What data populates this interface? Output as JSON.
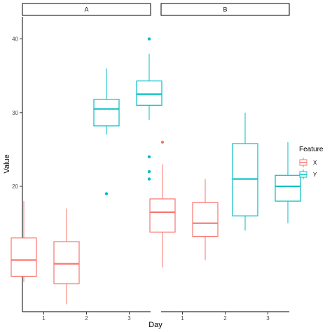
{
  "chart_data": {
    "type": "boxplot",
    "facets": [
      "A",
      "B"
    ],
    "xlabel": "Day",
    "ylabel": "Value",
    "categories": [
      "1",
      "2",
      "3"
    ],
    "x_ticks": [
      "1",
      "2",
      "3"
    ],
    "y_ticks": [
      10,
      20,
      30,
      40
    ],
    "ylim": [
      3,
      43
    ],
    "grid": false,
    "legend": {
      "title": "Feature",
      "position": "right",
      "entries": [
        {
          "name": "X",
          "color": "#F8766D"
        },
        {
          "name": "Y",
          "color": "#00BFC4"
        }
      ]
    },
    "boxes": [
      {
        "facet": "A",
        "day": "1",
        "series": "X",
        "whisker_low": 7,
        "q1": 7.8,
        "median": 10,
        "q3": 13,
        "whisker_high": 18,
        "outliers": []
      },
      {
        "facet": "A",
        "day": "2",
        "series": "X",
        "whisker_low": 4,
        "q1": 6.8,
        "median": 9.5,
        "q3": 12.5,
        "whisker_high": 17,
        "outliers": []
      },
      {
        "facet": "A",
        "day": "2",
        "series": "Y",
        "whisker_low": 27,
        "q1": 28.2,
        "median": 30.5,
        "q3": 31.8,
        "whisker_high": 36,
        "outliers": [
          19
        ]
      },
      {
        "facet": "A",
        "day": "3",
        "series": "Y",
        "whisker_low": 29,
        "q1": 31,
        "median": 32.5,
        "q3": 34.3,
        "whisker_high": 38,
        "outliers": [
          40,
          24,
          22,
          21
        ]
      },
      {
        "facet": "B",
        "day": "1",
        "series": "X",
        "whisker_low": 9,
        "q1": 13.8,
        "median": 16.5,
        "q3": 18.3,
        "whisker_high": 23,
        "outliers": [
          26
        ]
      },
      {
        "facet": "B",
        "day": "2",
        "series": "X",
        "whisker_low": 10,
        "q1": 13.2,
        "median": 15,
        "q3": 17.8,
        "whisker_high": 21,
        "outliers": []
      },
      {
        "facet": "B",
        "day": "2",
        "series": "Y",
        "whisker_low": 14,
        "q1": 16,
        "median": 21,
        "q3": 25.8,
        "whisker_high": 30,
        "outliers": []
      },
      {
        "facet": "B",
        "day": "3",
        "series": "Y",
        "whisker_low": 15,
        "q1": 18,
        "median": 20,
        "q3": 21.5,
        "whisker_high": 26,
        "outliers": []
      }
    ]
  }
}
